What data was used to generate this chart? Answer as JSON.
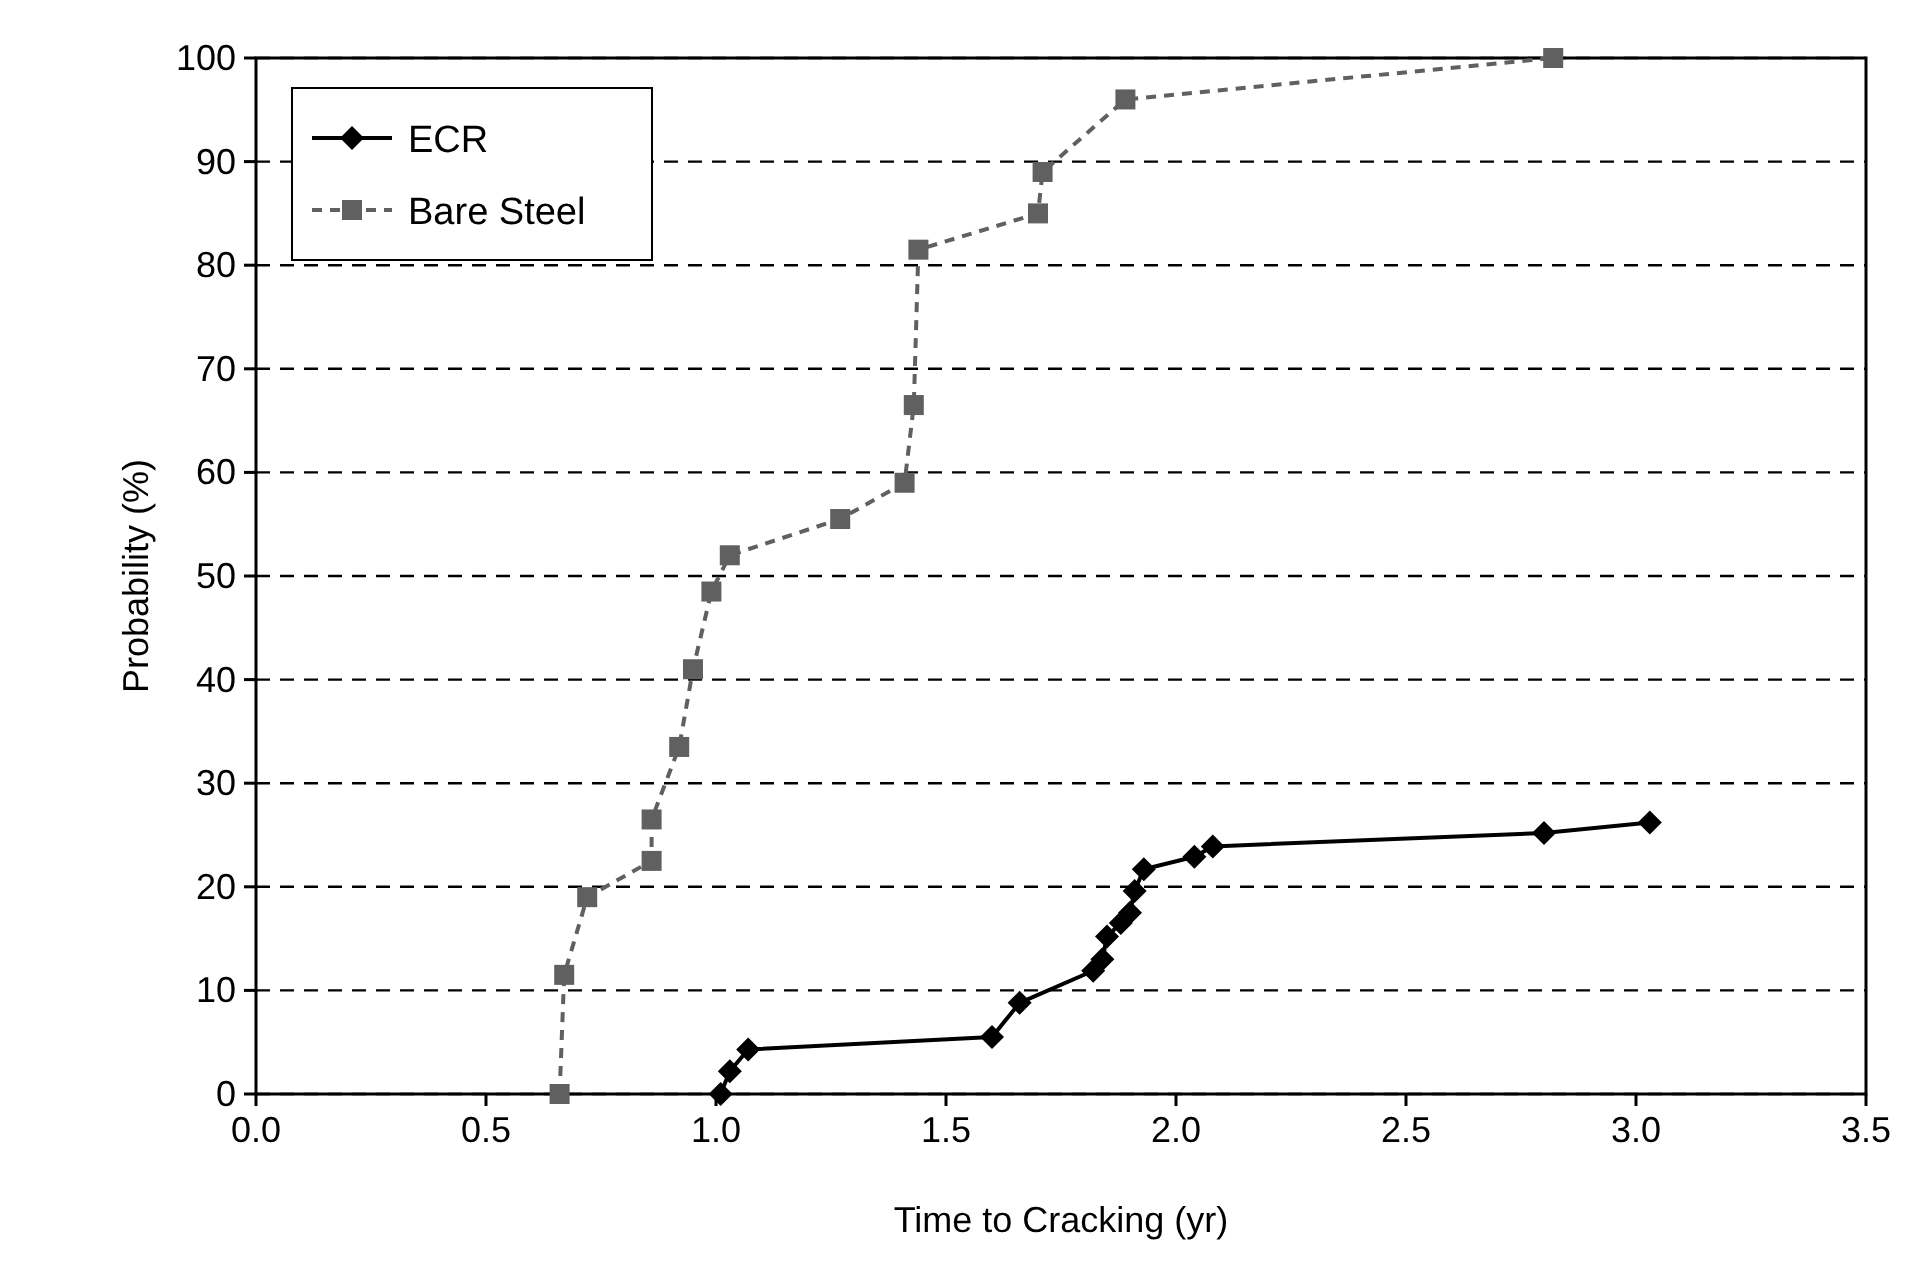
{
  "chart_data": {
    "type": "line",
    "xlabel": "Time to Cracking (yr)",
    "ylabel": "Probability (%)",
    "xlim": [
      0,
      3.5
    ],
    "xticks": [
      {
        "value": 0,
        "label": "0.0"
      },
      {
        "value": 0.5,
        "label": "0.5"
      },
      {
        "value": 1,
        "label": "1.0"
      },
      {
        "value": 1.5,
        "label": "1.5"
      },
      {
        "value": 2,
        "label": "2.0"
      },
      {
        "value": 2.5,
        "label": "2.5"
      },
      {
        "value": 3,
        "label": "3.0"
      },
      {
        "value": 3.5,
        "label": "3.5"
      }
    ],
    "ylim": [
      0,
      100
    ],
    "yticks": [
      0,
      10,
      20,
      30,
      40,
      50,
      60,
      70,
      80,
      90,
      100
    ],
    "grid": "y",
    "legend": "top left",
    "series": [
      {
        "name": "ECR",
        "color": "#000000",
        "marker": "diamond",
        "line_style": "solid",
        "x": [
          1.01,
          1.03,
          1.07,
          1.6,
          1.66,
          1.82,
          1.84,
          1.85,
          1.88,
          1.9,
          1.91,
          1.93,
          2.04,
          2.08,
          2.8,
          3.03
        ],
        "values": [
          0,
          2.2,
          4.3,
          5.5,
          8.8,
          11.9,
          13,
          15.2,
          16.5,
          17.5,
          19.6,
          21.7,
          22.9,
          23.9,
          25.2,
          26.2
        ]
      },
      {
        "name": "Bare Steel",
        "color": "#606060",
        "marker": "square",
        "line_style": "dashed",
        "x": [
          0.66,
          0.67,
          0.72,
          0.86,
          0.86,
          0.92,
          0.95,
          0.99,
          1.03,
          1.27,
          1.41,
          1.43,
          1.44,
          1.7,
          1.71,
          1.89,
          2.82
        ],
        "values": [
          0,
          11.5,
          19,
          22.5,
          26.5,
          33.5,
          41,
          48.5,
          52,
          55.5,
          59,
          66.5,
          81.5,
          85,
          89,
          96,
          100
        ]
      }
    ]
  }
}
